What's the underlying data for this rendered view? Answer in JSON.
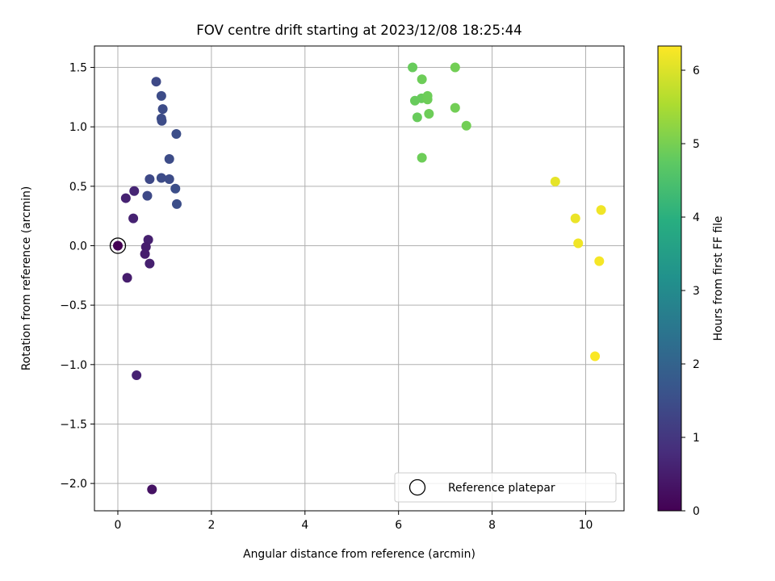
{
  "chart_data": {
    "type": "scatter",
    "title": "FOV centre drift starting at 2023/12/08 18:25:44",
    "xlabel": "Angular distance from reference (arcmin)",
    "ylabel": "Rotation from reference (arcmin)",
    "xlim": [
      -0.5,
      10.82
    ],
    "ylim": [
      -2.23,
      1.68
    ],
    "xticks": [
      "0",
      "2",
      "4",
      "6",
      "8",
      "10"
    ],
    "yticks": [
      "−2.0",
      "−1.5",
      "−1.0",
      "−0.5",
      "0.0",
      "0.5",
      "1.0",
      "1.5"
    ],
    "grid": true,
    "colormap": "viridis",
    "colorbar": {
      "label": "Hours from first FF file",
      "range": [
        0,
        6.33
      ],
      "ticks": [
        "0",
        "1",
        "2",
        "3",
        "4",
        "5",
        "6"
      ]
    },
    "legend": {
      "position": "lower-right",
      "entries": [
        "Reference platepar"
      ]
    },
    "reference_marker": {
      "x": 0.0,
      "y": 0.0
    },
    "points": [
      {
        "x": 0.0,
        "y": 0.0,
        "hours": 0.0
      },
      {
        "x": 0.17,
        "y": 0.4,
        "hours": 0.6
      },
      {
        "x": 0.35,
        "y": 0.46,
        "hours": 0.65
      },
      {
        "x": 0.33,
        "y": 0.23,
        "hours": 0.6
      },
      {
        "x": 0.65,
        "y": 0.05,
        "hours": 0.55
      },
      {
        "x": 0.6,
        "y": -0.01,
        "hours": 0.5
      },
      {
        "x": 0.58,
        "y": -0.07,
        "hours": 0.5
      },
      {
        "x": 0.68,
        "y": -0.15,
        "hours": 0.55
      },
      {
        "x": 0.2,
        "y": -0.27,
        "hours": 0.5
      },
      {
        "x": 0.4,
        "y": -1.09,
        "hours": 0.6
      },
      {
        "x": 0.73,
        "y": -2.05,
        "hours": 0.3
      },
      {
        "x": 0.63,
        "y": 0.42,
        "hours": 1.4
      },
      {
        "x": 0.68,
        "y": 0.56,
        "hours": 1.4
      },
      {
        "x": 0.93,
        "y": 0.57,
        "hours": 1.45
      },
      {
        "x": 1.1,
        "y": 0.56,
        "hours": 1.45
      },
      {
        "x": 1.23,
        "y": 0.48,
        "hours": 1.5
      },
      {
        "x": 1.26,
        "y": 0.35,
        "hours": 1.5
      },
      {
        "x": 1.1,
        "y": 0.73,
        "hours": 1.45
      },
      {
        "x": 1.25,
        "y": 0.94,
        "hours": 1.5
      },
      {
        "x": 0.93,
        "y": 1.07,
        "hours": 1.45
      },
      {
        "x": 0.94,
        "y": 1.05,
        "hours": 1.45
      },
      {
        "x": 0.96,
        "y": 1.15,
        "hours": 1.45
      },
      {
        "x": 0.93,
        "y": 1.26,
        "hours": 1.45
      },
      {
        "x": 0.82,
        "y": 1.38,
        "hours": 1.4
      },
      {
        "x": 6.3,
        "y": 1.5,
        "hours": 4.85
      },
      {
        "x": 7.21,
        "y": 1.5,
        "hours": 4.95
      },
      {
        "x": 6.5,
        "y": 1.4,
        "hours": 4.9
      },
      {
        "x": 6.35,
        "y": 1.22,
        "hours": 4.85
      },
      {
        "x": 6.49,
        "y": 1.24,
        "hours": 4.85
      },
      {
        "x": 6.62,
        "y": 1.23,
        "hours": 4.9
      },
      {
        "x": 6.62,
        "y": 1.26,
        "hours": 4.9
      },
      {
        "x": 7.21,
        "y": 1.16,
        "hours": 4.95
      },
      {
        "x": 6.65,
        "y": 1.11,
        "hours": 4.9
      },
      {
        "x": 6.4,
        "y": 1.08,
        "hours": 4.85
      },
      {
        "x": 7.45,
        "y": 1.01,
        "hours": 4.95
      },
      {
        "x": 6.5,
        "y": 0.74,
        "hours": 4.9
      },
      {
        "x": 9.35,
        "y": 0.54,
        "hours": 6.1
      },
      {
        "x": 10.33,
        "y": 0.3,
        "hours": 6.2
      },
      {
        "x": 9.78,
        "y": 0.23,
        "hours": 6.15
      },
      {
        "x": 9.84,
        "y": 0.02,
        "hours": 6.2
      },
      {
        "x": 10.29,
        "y": -0.13,
        "hours": 6.25
      },
      {
        "x": 10.2,
        "y": -0.93,
        "hours": 6.3
      }
    ]
  }
}
